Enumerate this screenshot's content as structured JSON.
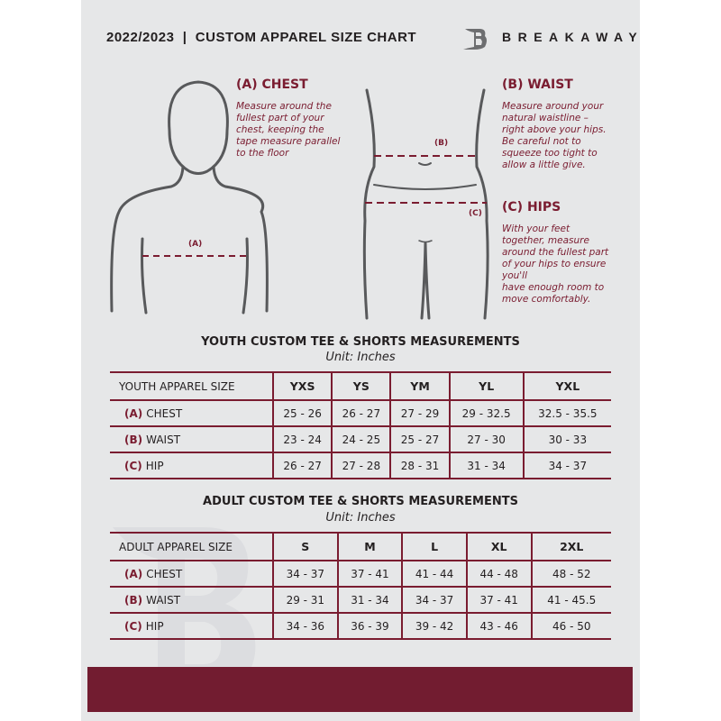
{
  "header": {
    "title": "2022/2023  |  CUSTOM APPAREL SIZE CHART",
    "brand": "BREAKAWAY",
    "logo_letter": "B"
  },
  "colors": {
    "accent": "#7a1c30",
    "background": "#e6e7e8",
    "text": "#231f20"
  },
  "guides": {
    "chest": {
      "heading": "(A) CHEST",
      "marker": "(A)",
      "text": "Measure around the\nfullest part of your\nchest, keeping the\ntape measure parallel\nto the floor"
    },
    "waist": {
      "heading": "(B) WAIST",
      "marker": "(B)",
      "text": "Measure around your\nnatural waistline –\nright above your hips.\nBe careful not to\nsqueeze too tight to\nallow a little give."
    },
    "hips": {
      "heading": "(C) HIPS",
      "marker": "(C)",
      "text": "With your feet\ntogether, measure\naround the fullest part\nof your hips to ensure\nyou'll\nhave enough room to\nmove comfortably."
    }
  },
  "tables": [
    {
      "title": "YOUTH CUSTOM TEE & SHORTS MEASUREMENTS",
      "unit": "Unit: Inches",
      "size_label": "YOUTH APPAREL SIZE",
      "sizes": [
        "YXS",
        "YS",
        "YM",
        "YL",
        "YXL"
      ],
      "rows": [
        {
          "code": "(A)",
          "label": "CHEST",
          "values": [
            "25 - 26",
            "26 - 27",
            "27 - 29",
            "29 - 32.5",
            "32.5 - 35.5"
          ]
        },
        {
          "code": "(B)",
          "label": "WAIST",
          "values": [
            "23 - 24",
            "24 - 25",
            "25 - 27",
            "27 - 30",
            "30 - 33"
          ]
        },
        {
          "code": "(C)",
          "label": "HIP",
          "values": [
            "26 - 27",
            "27 - 28",
            "28 - 31",
            "31 - 34",
            "34 - 37"
          ]
        }
      ]
    },
    {
      "title": "ADULT CUSTOM TEE & SHORTS MEASUREMENTS",
      "unit": "Unit: Inches",
      "size_label": "ADULT APPAREL SIZE",
      "sizes": [
        "S",
        "M",
        "L",
        "XL",
        "2XL"
      ],
      "rows": [
        {
          "code": "(A)",
          "label": "CHEST",
          "values": [
            "34 - 37",
            "37 - 41",
            "41 - 44",
            "44 - 48",
            "48 - 52"
          ]
        },
        {
          "code": "(B)",
          "label": "WAIST",
          "values": [
            "29 - 31",
            "31 - 34",
            "34 - 37",
            "37 - 41",
            "41 - 45.5"
          ]
        },
        {
          "code": "(C)",
          "label": "HIP",
          "values": [
            "34 - 36",
            "36 - 39",
            "39 - 42",
            "43 - 46",
            "46 - 50"
          ]
        }
      ]
    }
  ]
}
